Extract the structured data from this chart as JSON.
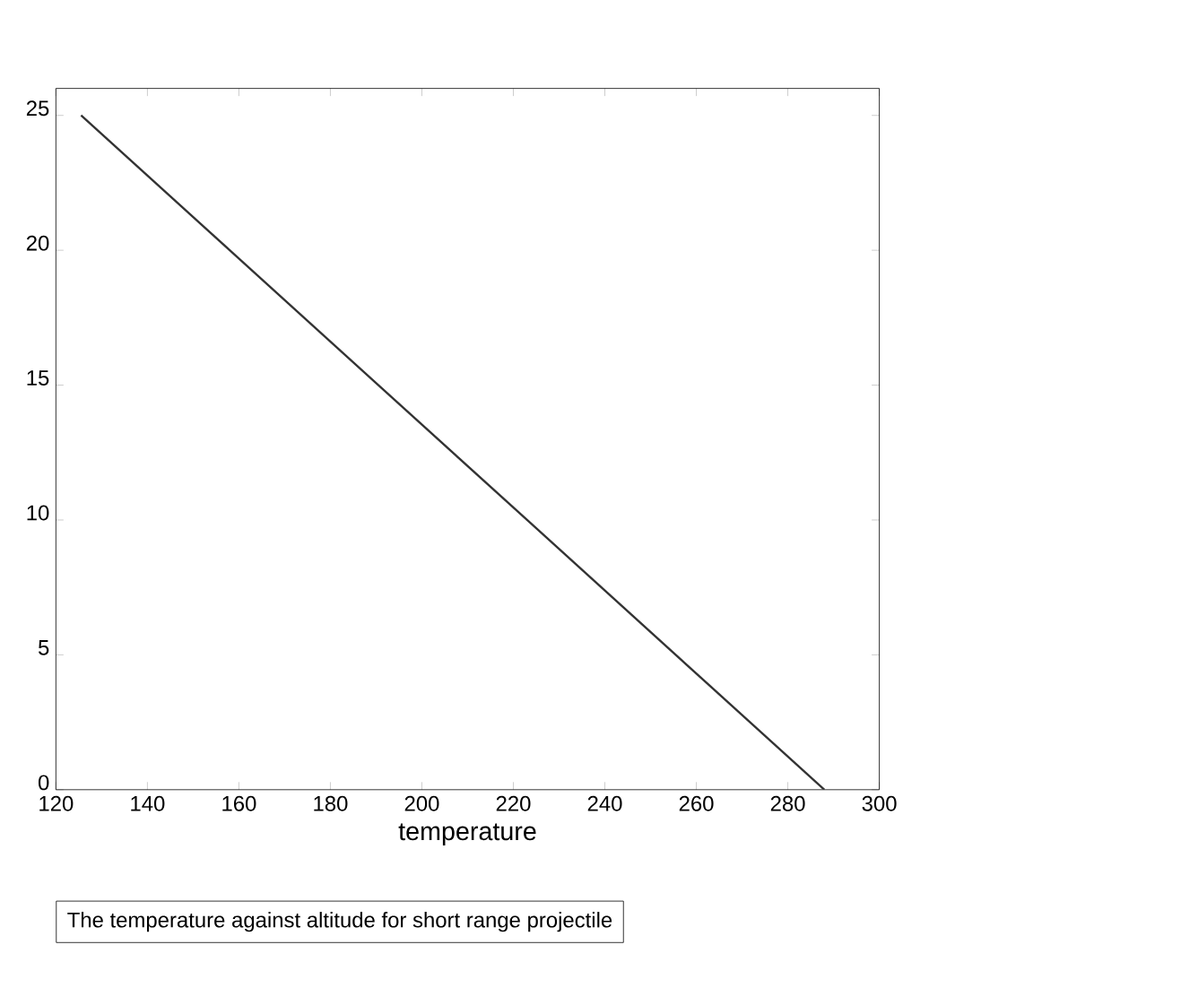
{
  "chart_data": {
    "type": "line",
    "xlabel": "temperature",
    "x": [
      288,
      255.5,
      223,
      190.5,
      158,
      125.5
    ],
    "series": [
      {
        "color": "#333333",
        "values": [
          0,
          5,
          10,
          15,
          20,
          25
        ]
      }
    ],
    "xlim": [
      120,
      300
    ],
    "xticks": [
      120,
      140,
      160,
      180,
      200,
      220,
      240,
      260,
      280,
      300
    ],
    "ylim": [
      0,
      26
    ],
    "yticks": [
      0,
      5,
      10,
      15,
      20,
      25
    ],
    "marker": "none",
    "line_style": "solid",
    "annotations": [
      "The temperature against altitude for short range projectile"
    ]
  }
}
